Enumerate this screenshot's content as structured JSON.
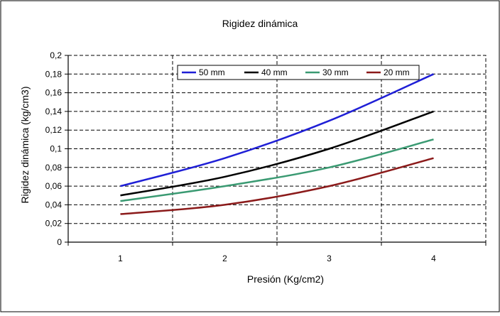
{
  "chart_data": {
    "type": "line",
    "title": "Rigidez dinámica",
    "xlabel": "Presión (Kg/cm2)",
    "ylabel": "Rigidez dinámica (kg/cm3)",
    "x": [
      1,
      2,
      3,
      4
    ],
    "xlim": [
      0.5,
      4.5
    ],
    "ylim": [
      0,
      0.2
    ],
    "x_ticks": [
      "1",
      "2",
      "3",
      "4"
    ],
    "y_ticks": [
      "0",
      "0,02",
      "0,04",
      "0,06",
      "0,08",
      "0,1",
      "0,12",
      "0,14",
      "0,16",
      "0,18",
      "0,2"
    ],
    "grid": true,
    "legend_position": "top",
    "series": [
      {
        "name": "50 mm",
        "color": "#1f1fd6",
        "values": [
          0.06,
          0.09,
          0.13,
          0.18
        ]
      },
      {
        "name": "40 mm",
        "color": "#000000",
        "values": [
          0.05,
          0.07,
          0.1,
          0.14
        ]
      },
      {
        "name": "30 mm",
        "color": "#3a9a72",
        "values": [
          0.044,
          0.06,
          0.08,
          0.11
        ]
      },
      {
        "name": "20 mm",
        "color": "#8b1a1a",
        "values": [
          0.03,
          0.04,
          0.06,
          0.09
        ]
      }
    ]
  }
}
